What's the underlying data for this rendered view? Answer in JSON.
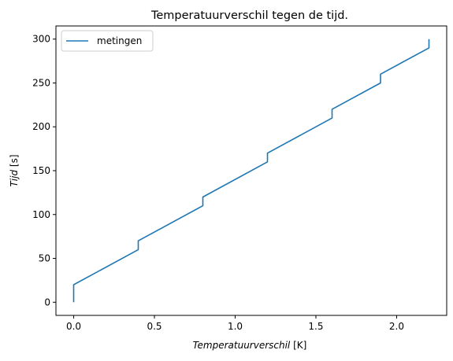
{
  "chart_data": {
    "type": "line",
    "title": "Temperatuurverschil tegen de tijd.",
    "xlabel_var": "Temperatuurverschil",
    "xlabel_unit": " [K]",
    "ylabel_var": "Tijd",
    "ylabel_unit": " [s]",
    "xlim": [
      -0.11,
      2.31
    ],
    "ylim": [
      -15,
      315
    ],
    "x_ticks": [
      0.0,
      0.5,
      1.0,
      1.5,
      2.0
    ],
    "x_tick_labels": [
      "0.0",
      "0.5",
      "1.0",
      "1.5",
      "2.0"
    ],
    "y_ticks": [
      0,
      50,
      100,
      150,
      200,
      250,
      300
    ],
    "y_tick_labels": [
      "0",
      "50",
      "100",
      "150",
      "200",
      "250",
      "300"
    ],
    "grid": false,
    "legend_position": "top-left",
    "series": [
      {
        "name": "metingen",
        "color": "#1f77b4",
        "x": [
          0,
          0,
          0.4,
          0.4,
          0.8,
          0.8,
          1.2,
          1.2,
          1.6,
          1.6,
          1.9,
          1.9,
          2.2,
          2.2
        ],
        "y": [
          0,
          20,
          60,
          70,
          110,
          120,
          160,
          170,
          210,
          220,
          250,
          260,
          290,
          300
        ]
      }
    ]
  }
}
